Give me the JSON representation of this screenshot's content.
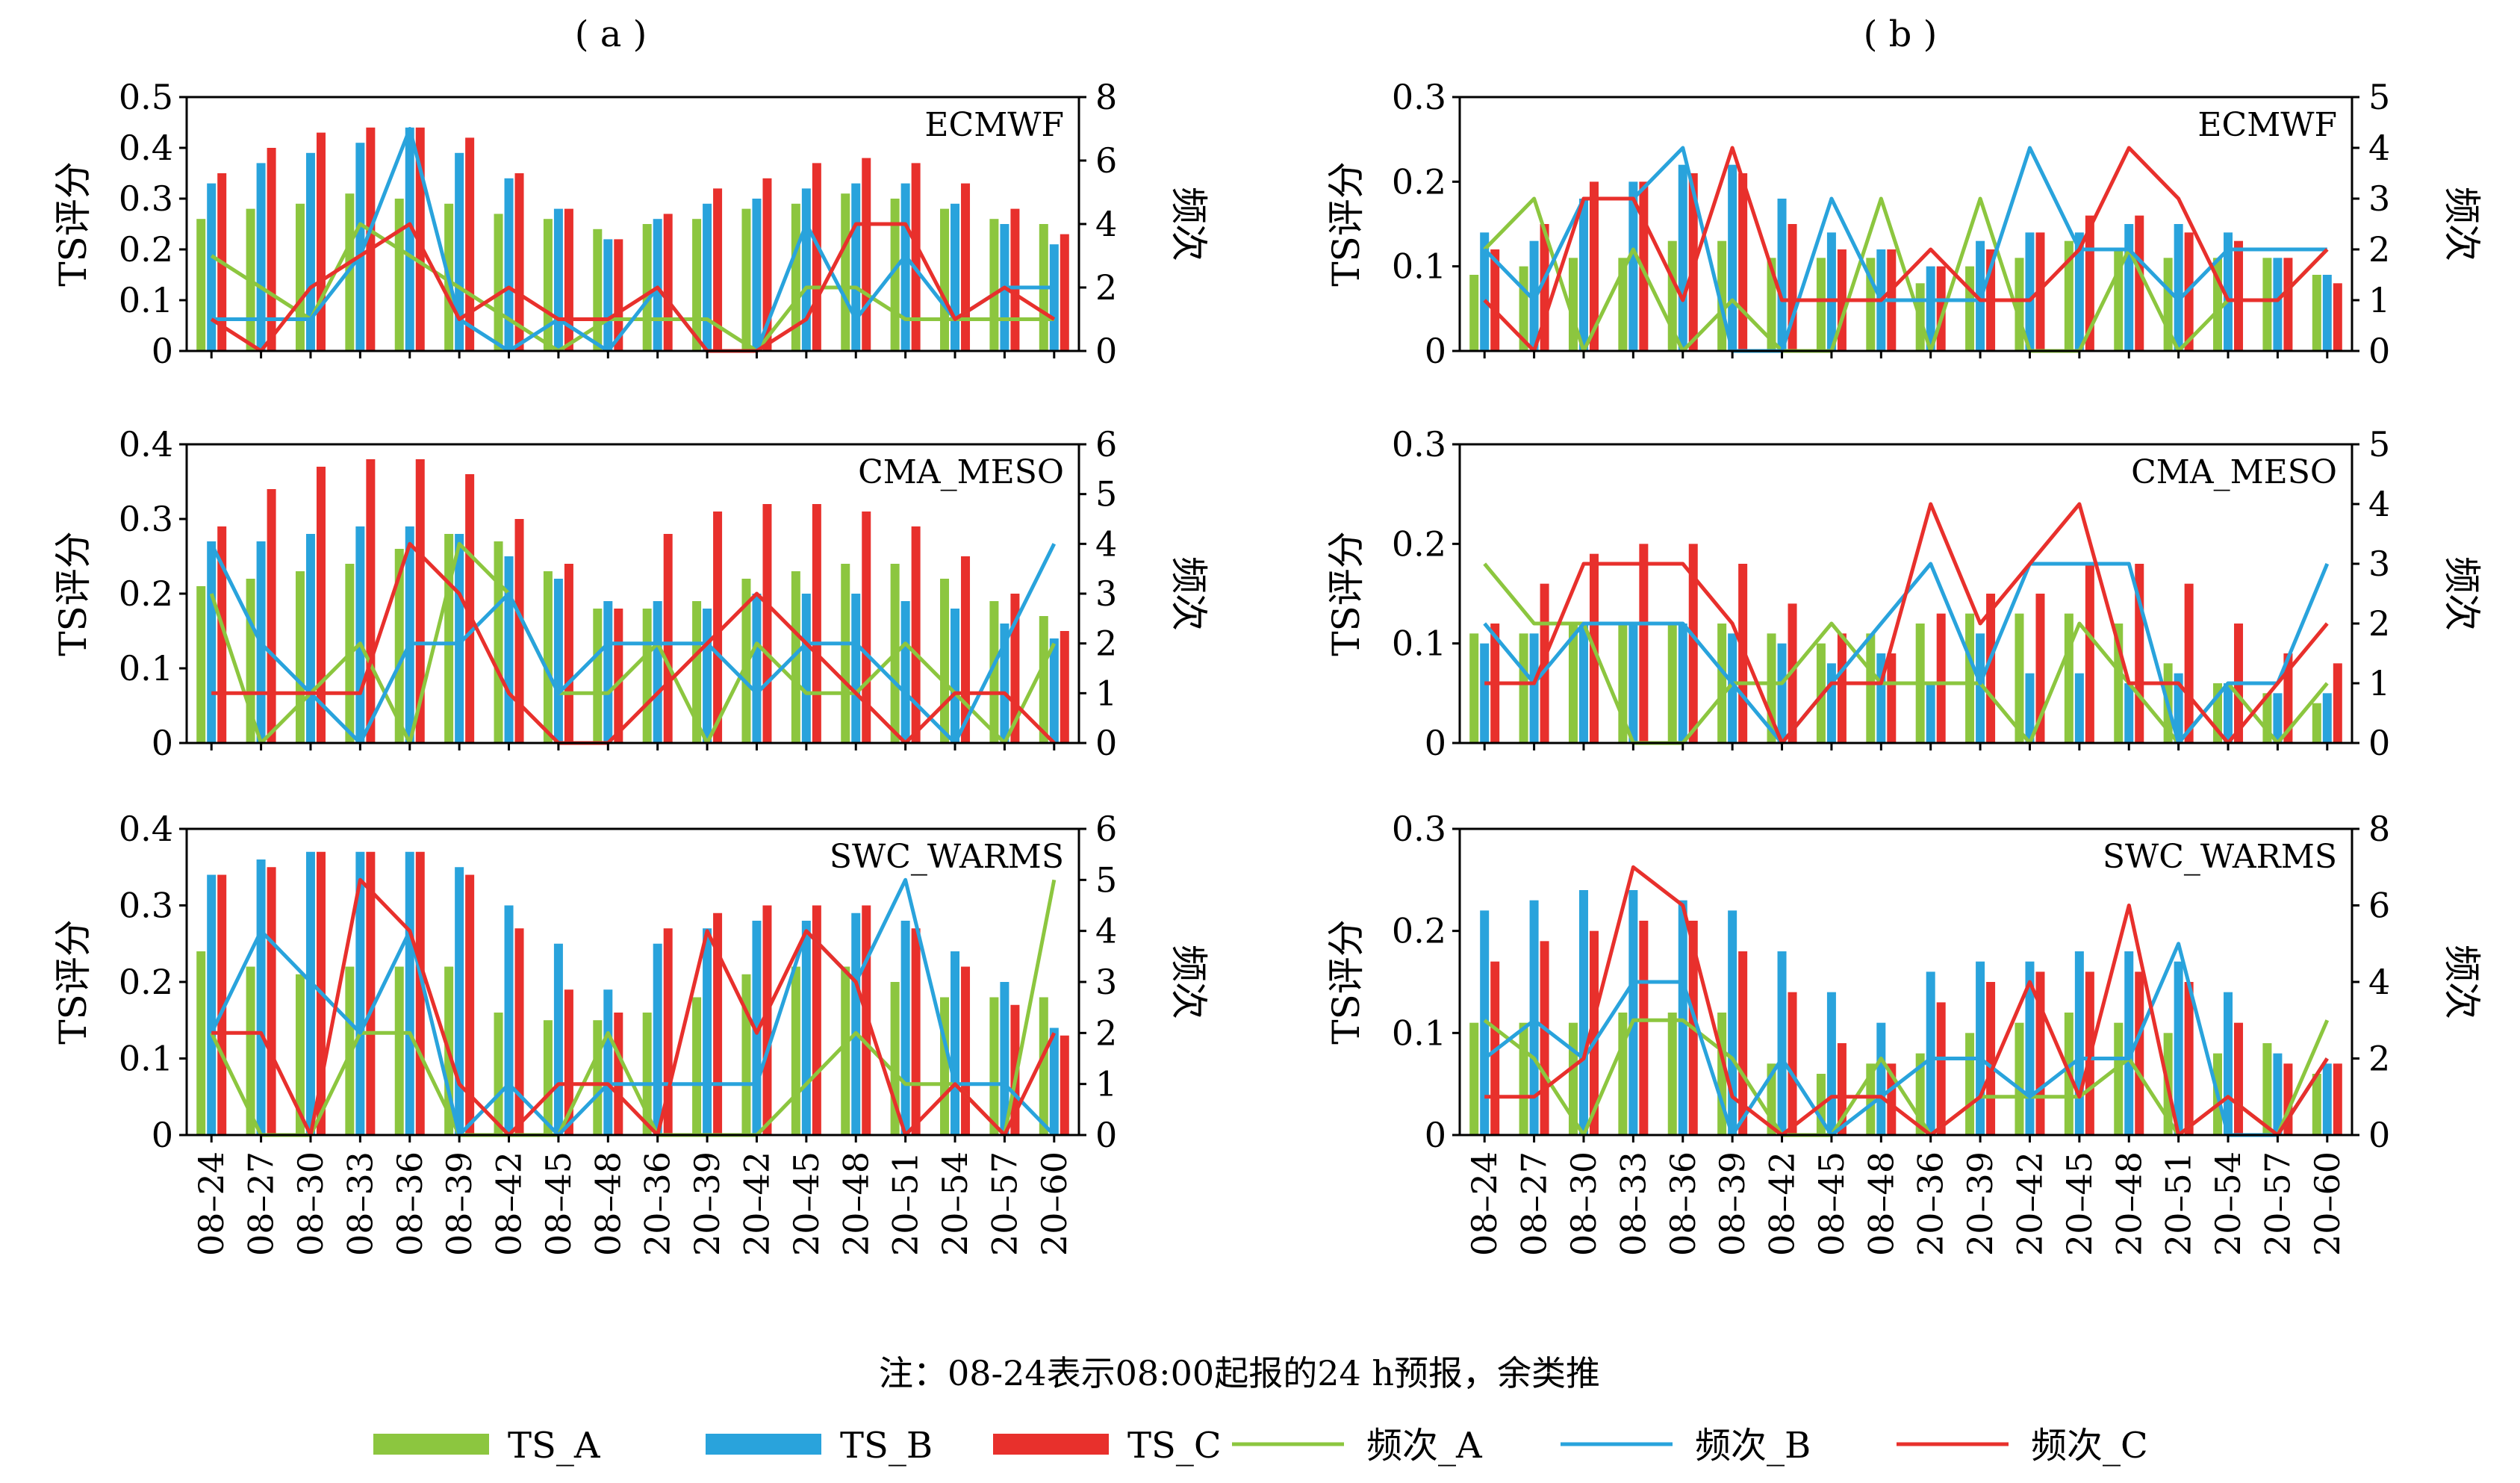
{
  "panel_labels": [
    "( a )",
    "( b )"
  ],
  "note": "注：08-24表示08:00起报的24 h预报，余类推",
  "legend": [
    "TS_A",
    "TS_B",
    "TS_C",
    "频次_A",
    "频次_B",
    "频次_C"
  ],
  "colors": {
    "A": "#8cc63f",
    "B": "#29a3dc",
    "C": "#e8302c"
  },
  "categories": [
    "08–24",
    "08–27",
    "08–30",
    "08–33",
    "08–36",
    "08–39",
    "08–42",
    "08–45",
    "08–48",
    "20–36",
    "20–39",
    "20–42",
    "20–45",
    "20–48",
    "20–51",
    "20–54",
    "20–57",
    "20–60"
  ],
  "chart_data": [
    {
      "type": "bar",
      "panel": "a",
      "title": "ECMWF",
      "ylabel": "TS评分",
      "y2label": "频次",
      "ylim": [
        0,
        0.5
      ],
      "y2lim": [
        0,
        8
      ],
      "yticks": [
        "0",
        "0.1",
        "0.2",
        "0.3",
        "0.4",
        "0.5"
      ],
      "y2ticks": [
        "0",
        "2",
        "4",
        "6",
        "8"
      ],
      "series": [
        {
          "name": "TS_A",
          "values": [
            0.26,
            0.28,
            0.29,
            0.31,
            0.3,
            0.29,
            0.27,
            0.26,
            0.24,
            0.25,
            0.26,
            0.28,
            0.29,
            0.31,
            0.3,
            0.28,
            0.26,
            0.25
          ]
        },
        {
          "name": "TS_B",
          "values": [
            0.33,
            0.37,
            0.39,
            0.41,
            0.44,
            0.39,
            0.34,
            0.28,
            0.22,
            0.26,
            0.29,
            0.3,
            0.32,
            0.33,
            0.33,
            0.29,
            0.25,
            0.21
          ]
        },
        {
          "name": "TS_C",
          "values": [
            0.35,
            0.4,
            0.43,
            0.44,
            0.44,
            0.42,
            0.35,
            0.28,
            0.22,
            0.27,
            0.32,
            0.34,
            0.37,
            0.38,
            0.37,
            0.33,
            0.28,
            0.23
          ]
        },
        {
          "name": "频次_A",
          "values": [
            3,
            2,
            1,
            4,
            3,
            2,
            1,
            0,
            1,
            1,
            1,
            0,
            2,
            2,
            1,
            1,
            1,
            1
          ]
        },
        {
          "name": "频次_B",
          "values": [
            1,
            1,
            1,
            3,
            7,
            1,
            0,
            1,
            0,
            2,
            0,
            0,
            4,
            1,
            3,
            1,
            2,
            2
          ]
        },
        {
          "name": "频次_C",
          "values": [
            1,
            0,
            2,
            3,
            4,
            1,
            2,
            1,
            1,
            2,
            0,
            0,
            1,
            4,
            4,
            1,
            2,
            1
          ]
        }
      ]
    },
    {
      "type": "bar",
      "panel": "b",
      "title": "ECMWF",
      "ylabel": "TS评分",
      "y2label": "频次",
      "ylim": [
        0,
        0.3
      ],
      "y2lim": [
        0,
        5
      ],
      "yticks": [
        "0",
        "0.1",
        "0.2",
        "0.3"
      ],
      "y2ticks": [
        "0",
        "1",
        "2",
        "3",
        "4",
        "5"
      ],
      "series": [
        {
          "name": "TS_A",
          "values": [
            0.09,
            0.1,
            0.11,
            0.11,
            0.13,
            0.13,
            0.11,
            0.11,
            0.11,
            0.08,
            0.1,
            0.11,
            0.13,
            0.12,
            0.11,
            0.11,
            0.11,
            0.09
          ]
        },
        {
          "name": "TS_B",
          "values": [
            0.14,
            0.13,
            0.18,
            0.2,
            0.22,
            0.22,
            0.18,
            0.14,
            0.12,
            0.1,
            0.13,
            0.14,
            0.14,
            0.15,
            0.15,
            0.14,
            0.11,
            0.09
          ]
        },
        {
          "name": "TS_C",
          "values": [
            0.12,
            0.15,
            0.2,
            0.2,
            0.21,
            0.21,
            0.15,
            0.12,
            0.12,
            0.1,
            0.12,
            0.14,
            0.16,
            0.16,
            0.14,
            0.13,
            0.11,
            0.08
          ]
        },
        {
          "name": "频次_A",
          "values": [
            2,
            3,
            0,
            2,
            0,
            1,
            0,
            0,
            3,
            0,
            3,
            0,
            0,
            2,
            0,
            1,
            1,
            2
          ]
        },
        {
          "name": "频次_B",
          "values": [
            2,
            1,
            3,
            3,
            4,
            0,
            0,
            3,
            1,
            1,
            1,
            4,
            2,
            2,
            1,
            2,
            2,
            2
          ]
        },
        {
          "name": "频次_C",
          "values": [
            1,
            0,
            3,
            3,
            1,
            4,
            1,
            1,
            1,
            2,
            1,
            1,
            2,
            4,
            3,
            1,
            1,
            2
          ]
        }
      ]
    },
    {
      "type": "bar",
      "panel": "a",
      "title": "CMA_MESO",
      "ylabel": "TS评分",
      "y2label": "频次",
      "ylim": [
        0,
        0.4
      ],
      "y2lim": [
        0,
        6
      ],
      "yticks": [
        "0",
        "0.1",
        "0.2",
        "0.3",
        "0.4"
      ],
      "y2ticks": [
        "0",
        "1",
        "2",
        "3",
        "4",
        "5",
        "6"
      ],
      "series": [
        {
          "name": "TS_A",
          "values": [
            0.21,
            0.22,
            0.23,
            0.24,
            0.26,
            0.28,
            0.27,
            0.23,
            0.18,
            0.18,
            0.19,
            0.22,
            0.23,
            0.24,
            0.24,
            0.22,
            0.19,
            0.17
          ]
        },
        {
          "name": "TS_B",
          "values": [
            0.27,
            0.27,
            0.28,
            0.29,
            0.29,
            0.28,
            0.25,
            0.22,
            0.19,
            0.19,
            0.18,
            0.2,
            0.2,
            0.2,
            0.19,
            0.18,
            0.16,
            0.14
          ]
        },
        {
          "name": "TS_C",
          "values": [
            0.29,
            0.34,
            0.37,
            0.38,
            0.38,
            0.36,
            0.3,
            0.24,
            0.18,
            0.28,
            0.31,
            0.32,
            0.32,
            0.31,
            0.29,
            0.25,
            0.2,
            0.15
          ]
        },
        {
          "name": "频次_A",
          "values": [
            3,
            0,
            1,
            2,
            0,
            4,
            3,
            1,
            1,
            2,
            0,
            2,
            1,
            1,
            2,
            1,
            0,
            2
          ]
        },
        {
          "name": "频次_B",
          "values": [
            4,
            2,
            1,
            0,
            2,
            2,
            3,
            1,
            2,
            2,
            2,
            1,
            2,
            2,
            1,
            0,
            2,
            4
          ]
        },
        {
          "name": "频次_C",
          "values": [
            1,
            1,
            1,
            1,
            4,
            3,
            1,
            0,
            0,
            1,
            2,
            3,
            2,
            1,
            0,
            1,
            1,
            0
          ]
        }
      ]
    },
    {
      "type": "bar",
      "panel": "b",
      "title": "CMA_MESO",
      "ylabel": "TS评分",
      "y2label": "频次",
      "ylim": [
        0,
        0.3
      ],
      "y2lim": [
        0,
        5
      ],
      "yticks": [
        "0",
        "0.1",
        "0.2",
        "0.3"
      ],
      "y2ticks": [
        "0",
        "1",
        "2",
        "3",
        "4",
        "5"
      ],
      "series": [
        {
          "name": "TS_A",
          "values": [
            0.11,
            0.11,
            0.12,
            0.12,
            0.12,
            0.12,
            0.11,
            0.1,
            0.11,
            0.12,
            0.13,
            0.13,
            0.13,
            0.12,
            0.08,
            0.06,
            0.05,
            0.04
          ]
        },
        {
          "name": "TS_B",
          "values": [
            0.1,
            0.11,
            0.12,
            0.12,
            0.12,
            0.11,
            0.1,
            0.08,
            0.09,
            0.06,
            0.11,
            0.07,
            0.07,
            0.06,
            0.07,
            0.06,
            0.05,
            0.05
          ]
        },
        {
          "name": "TS_C",
          "values": [
            0.12,
            0.16,
            0.19,
            0.2,
            0.2,
            0.18,
            0.14,
            0.11,
            0.09,
            0.13,
            0.15,
            0.15,
            0.18,
            0.18,
            0.16,
            0.12,
            0.09,
            0.08
          ]
        },
        {
          "name": "频次_A",
          "values": [
            3,
            2,
            2,
            0,
            0,
            1,
            1,
            2,
            1,
            1,
            1,
            0,
            2,
            1,
            0,
            1,
            0,
            1
          ]
        },
        {
          "name": "频次_B",
          "values": [
            2,
            1,
            2,
            2,
            2,
            1,
            0,
            1,
            2,
            3,
            1,
            3,
            3,
            3,
            0,
            1,
            1,
            3
          ]
        },
        {
          "name": "频次_C",
          "values": [
            1,
            1,
            3,
            3,
            3,
            2,
            0,
            1,
            1,
            4,
            2,
            3,
            4,
            1,
            1,
            0,
            1,
            2
          ]
        }
      ]
    },
    {
      "type": "bar",
      "panel": "a",
      "title": "SWC_WARMS",
      "ylabel": "TS评分",
      "y2label": "频次",
      "ylim": [
        0,
        0.4
      ],
      "y2lim": [
        0,
        6
      ],
      "yticks": [
        "0",
        "0.1",
        "0.2",
        "0.3",
        "0.4"
      ],
      "y2ticks": [
        "0",
        "1",
        "2",
        "3",
        "4",
        "5",
        "6"
      ],
      "series": [
        {
          "name": "TS_A",
          "values": [
            0.24,
            0.22,
            0.21,
            0.22,
            0.22,
            0.22,
            0.16,
            0.15,
            0.15,
            0.16,
            0.18,
            0.21,
            0.22,
            0.22,
            0.2,
            0.18,
            0.18,
            0.18
          ]
        },
        {
          "name": "TS_B",
          "values": [
            0.34,
            0.36,
            0.37,
            0.37,
            0.37,
            0.35,
            0.3,
            0.25,
            0.19,
            0.25,
            0.27,
            0.28,
            0.28,
            0.29,
            0.28,
            0.24,
            0.2,
            0.14
          ]
        },
        {
          "name": "TS_C",
          "values": [
            0.34,
            0.35,
            0.37,
            0.37,
            0.37,
            0.34,
            0.27,
            0.19,
            0.16,
            0.27,
            0.29,
            0.3,
            0.3,
            0.3,
            0.27,
            0.22,
            0.17,
            0.13
          ]
        },
        {
          "name": "频次_A",
          "values": [
            2,
            0,
            0,
            2,
            2,
            0,
            0,
            0,
            2,
            0,
            0,
            0,
            1,
            2,
            1,
            1,
            0,
            5
          ]
        },
        {
          "name": "频次_B",
          "values": [
            2,
            4,
            3,
            2,
            4,
            0,
            1,
            0,
            1,
            1,
            1,
            1,
            4,
            3,
            5,
            1,
            1,
            0
          ]
        },
        {
          "name": "频次_C",
          "values": [
            2,
            2,
            0,
            5,
            4,
            1,
            0,
            1,
            1,
            0,
            4,
            2,
            4,
            3,
            0,
            1,
            0,
            2
          ]
        }
      ]
    },
    {
      "type": "bar",
      "panel": "b",
      "title": "SWC_WARMS",
      "ylabel": "TS评分",
      "y2label": "频次",
      "ylim": [
        0,
        0.3
      ],
      "y2lim": [
        0,
        8
      ],
      "yticks": [
        "0",
        "0.1",
        "0.2",
        "0.3"
      ],
      "y2ticks": [
        "0",
        "2",
        "4",
        "6",
        "8"
      ],
      "series": [
        {
          "name": "TS_A",
          "values": [
            0.11,
            0.11,
            0.11,
            0.12,
            0.12,
            0.12,
            0.07,
            0.06,
            0.07,
            0.08,
            0.1,
            0.11,
            0.12,
            0.11,
            0.1,
            0.08,
            0.09,
            0.06
          ]
        },
        {
          "name": "TS_B",
          "values": [
            0.22,
            0.23,
            0.24,
            0.24,
            0.23,
            0.22,
            0.18,
            0.14,
            0.11,
            0.16,
            0.17,
            0.17,
            0.18,
            0.18,
            0.17,
            0.14,
            0.08,
            0.07
          ]
        },
        {
          "name": "TS_C",
          "values": [
            0.17,
            0.19,
            0.2,
            0.21,
            0.21,
            0.18,
            0.14,
            0.09,
            0.07,
            0.13,
            0.15,
            0.16,
            0.16,
            0.16,
            0.15,
            0.11,
            0.07,
            0.07
          ]
        },
        {
          "name": "频次_A",
          "values": [
            3,
            2,
            0,
            3,
            3,
            2,
            0,
            0,
            2,
            0,
            1,
            1,
            1,
            2,
            0,
            1,
            0,
            3
          ]
        },
        {
          "name": "频次_B",
          "values": [
            2,
            3,
            2,
            4,
            4,
            0,
            2,
            0,
            1,
            2,
            2,
            1,
            2,
            2,
            5,
            0,
            0,
            2
          ]
        },
        {
          "name": "频次_C",
          "values": [
            1,
            1,
            2,
            7,
            6,
            1,
            0,
            1,
            1,
            0,
            1,
            4,
            1,
            6,
            0,
            1,
            0,
            2
          ]
        }
      ]
    }
  ]
}
